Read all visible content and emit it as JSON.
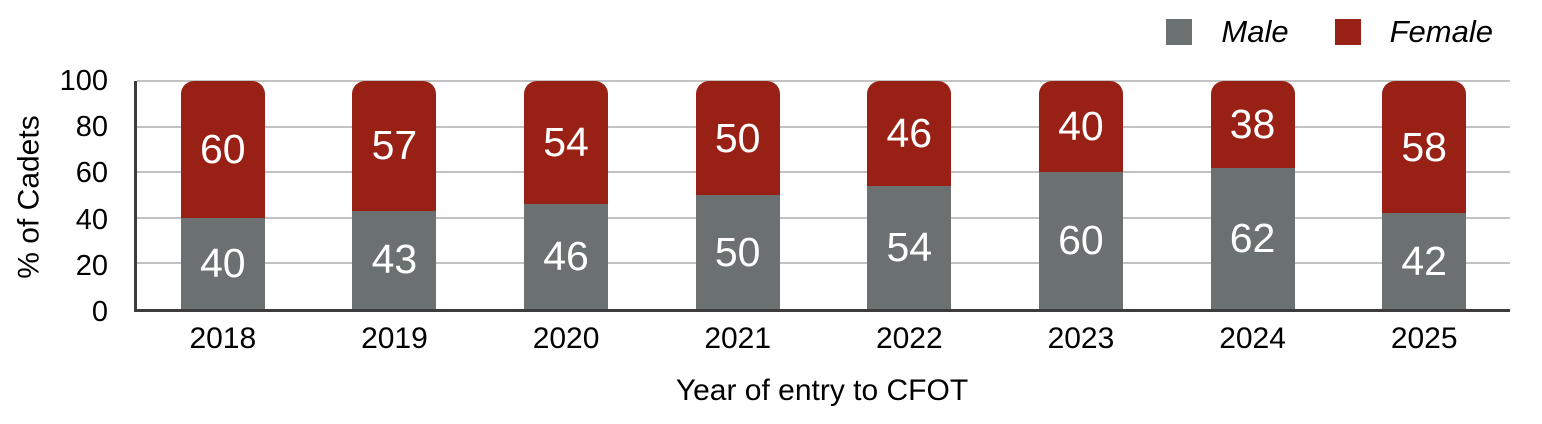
{
  "chart_data": {
    "type": "bar",
    "variant": "stacked-percent",
    "categories": [
      "2018",
      "2019",
      "2020",
      "2021",
      "2022",
      "2023",
      "2024",
      "2025"
    ],
    "series": [
      {
        "name": "Male",
        "color": "#6b7170",
        "values": [
          40,
          43,
          46,
          50,
          54,
          60,
          62,
          42
        ]
      },
      {
        "name": "Female",
        "color": "#992015",
        "values": [
          60,
          57,
          54,
          50,
          46,
          40,
          38,
          58
        ]
      }
    ],
    "xlabel": "Year of entry to CFOT",
    "ylabel": "% of Cadets",
    "ylim": [
      0,
      100
    ],
    "yticks": [
      0,
      20,
      40,
      60,
      80,
      100
    ],
    "grid": true,
    "bar_value_labels": true,
    "value_label_color": "#ffffff",
    "legend_position": "top-right",
    "legend_italic": true
  },
  "style": {
    "background": "#ffffff",
    "axis_color": "#3c3c3c",
    "gridline_color": "#c2c2c2",
    "text_color": "#000000"
  }
}
